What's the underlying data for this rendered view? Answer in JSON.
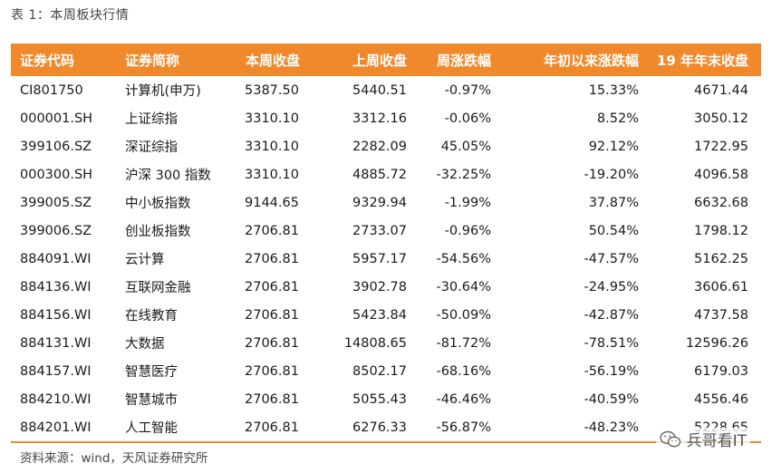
{
  "caption": "表 1：本周板块行情",
  "table": {
    "headers": [
      "证券代码",
      "证券简称",
      "本周收盘",
      "上周收盘",
      "周涨跌幅",
      "年初以来涨跌幅",
      "19 年年末收盘"
    ],
    "rows": [
      [
        "CI801750",
        "计算机(申万)",
        "5387.50",
        "5440.51",
        "-0.97%",
        "15.33%",
        "4671.44"
      ],
      [
        "000001.SH",
        "上证综指",
        "3310.10",
        "3312.16",
        "-0.06%",
        "8.52%",
        "3050.12"
      ],
      [
        "399106.SZ",
        "深证综指",
        "3310.10",
        "2282.09",
        "45.05%",
        "92.12%",
        "1722.95"
      ],
      [
        "000300.SH",
        "沪深 300 指数",
        "3310.10",
        "4885.72",
        "-32.25%",
        "-19.20%",
        "4096.58"
      ],
      [
        "399005.SZ",
        "中小板指数",
        "9144.65",
        "9329.94",
        "-1.99%",
        "37.87%",
        "6632.68"
      ],
      [
        "399006.SZ",
        "创业板指数",
        "2706.81",
        "2733.07",
        "-0.96%",
        "50.54%",
        "1798.12"
      ],
      [
        "884091.WI",
        "云计算",
        "2706.81",
        "5957.17",
        "-54.56%",
        "-47.57%",
        "5162.25"
      ],
      [
        "884136.WI",
        "互联网金融",
        "2706.81",
        "3902.78",
        "-30.64%",
        "-24.95%",
        "3606.61"
      ],
      [
        "884156.WI",
        "在线教育",
        "2706.81",
        "5423.84",
        "-50.09%",
        "-42.87%",
        "4737.58"
      ],
      [
        "884131.WI",
        "大数据",
        "2706.81",
        "14808.65",
        "-81.72%",
        "-78.51%",
        "12596.26"
      ],
      [
        "884157.WI",
        "智慧医疗",
        "2706.81",
        "8502.17",
        "-68.16%",
        "-56.19%",
        "6179.03"
      ],
      [
        "884210.WI",
        "智慧城市",
        "2706.81",
        "5055.43",
        "-46.46%",
        "-40.59%",
        "4556.46"
      ],
      [
        "884201.WI",
        "人工智能",
        "2706.81",
        "6276.33",
        "-56.87%",
        "-48.23%",
        "5228.65"
      ]
    ]
  },
  "source": "资料来源：wind，天风证券研究所",
  "watermark": {
    "text": "兵哥看IT",
    "icon": "wechat-icon"
  },
  "colors": {
    "header_bg": "#f0892b",
    "header_text": "#ffffff"
  }
}
